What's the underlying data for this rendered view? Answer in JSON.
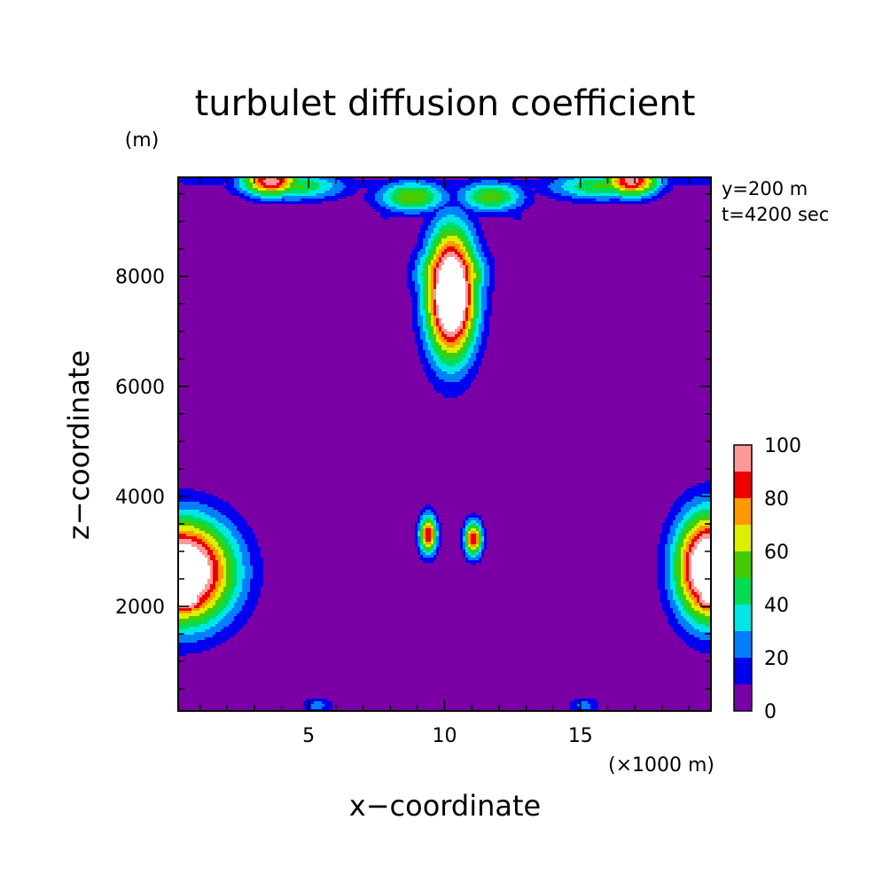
{
  "chart_data": {
    "type": "contour",
    "title": "turbulet diffusion coefficient",
    "xlabel": "x−coordinate",
    "ylabel": "z−coordinate",
    "x_unit": "(×1000 m)",
    "y_unit": "(m)",
    "annotations": [
      "y=200 m",
      "t=4200 sec"
    ],
    "xlim": [
      0.2,
      19.8
    ],
    "ylim": [
      100,
      9800
    ],
    "x_ticks": [
      {
        "value": 5,
        "label": "5"
      },
      {
        "value": 10,
        "label": "10"
      },
      {
        "value": 15,
        "label": "15"
      }
    ],
    "y_ticks": [
      {
        "value": 2000,
        "label": "2000"
      },
      {
        "value": 4000,
        "label": "4000"
      },
      {
        "value": 6000,
        "label": "6000"
      },
      {
        "value": 8000,
        "label": "8000"
      }
    ],
    "background_level_color": "#7a00a6",
    "colorbar": {
      "levels": [
        0,
        10,
        20,
        30,
        40,
        50,
        60,
        70,
        80,
        90,
        100
      ],
      "colors": [
        "#7a00a6",
        "#0000ee",
        "#0080ff",
        "#00e6e6",
        "#00dd55",
        "#44cc00",
        "#ddee00",
        "#ff9900",
        "#ee0000",
        "#ff9999"
      ],
      "tick_labels": [
        {
          "value": 0,
          "label": "0"
        },
        {
          "value": 20,
          "label": "20"
        },
        {
          "value": 40,
          "label": "40"
        },
        {
          "value": 60,
          "label": "60"
        },
        {
          "value": 80,
          "label": "80"
        },
        {
          "value": 100,
          "label": "100"
        }
      ],
      "above_max_color": "#ffffff"
    },
    "features": [
      {
        "name": "left-boundary-blob",
        "x": [
          0.2,
          1.5,
          2.6
        ],
        "z": [
          2000,
          2900,
          3500
        ],
        "peak": 130
      },
      {
        "name": "right-boundary-blob",
        "x": [
          18.5,
          19.2,
          19.8
        ],
        "z": [
          2000,
          2800,
          3500
        ],
        "peak": 130
      },
      {
        "name": "upper-central-maximum",
        "x_center": 10.2,
        "z_range": [
          6700,
          8700
        ],
        "peak": 130
      },
      {
        "name": "mid-left-cell",
        "x_center": 9.4,
        "z_center": 3250,
        "peak": 90
      },
      {
        "name": "mid-right-cell",
        "x_center": 11.0,
        "z_center": 3200,
        "peak": 90
      },
      {
        "name": "top-left-cell",
        "x_center": 3.6,
        "z_center": 9750,
        "peak": 95
      },
      {
        "name": "top-right-cell",
        "x_center": 16.8,
        "z_center": 9750,
        "peak": 95
      },
      {
        "name": "top-center-cells",
        "x_center": 10.0,
        "z_center": 9600,
        "peak": 60
      }
    ]
  }
}
